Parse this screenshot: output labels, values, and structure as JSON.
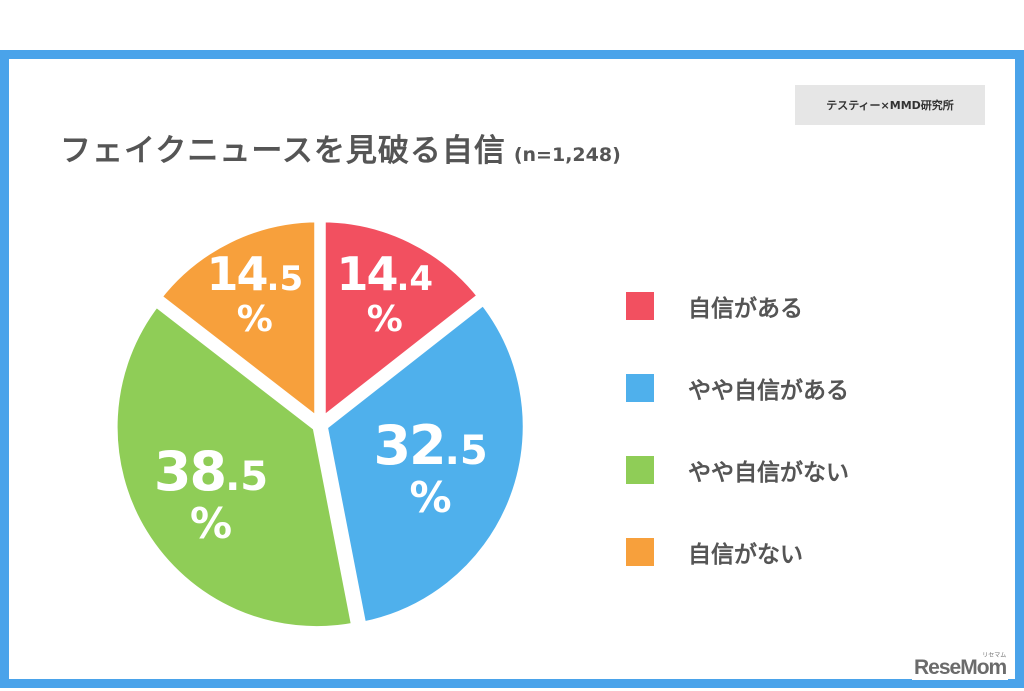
{
  "title": "フェイクニュースを見破る自信",
  "sample": "(n=1,248)",
  "source": "テスティー×MMD研究所",
  "logo": "ReseMom",
  "logo_kana": "リセマム",
  "colors": {
    "frame": "#4aa3ea",
    "red": "#f25060",
    "blue": "#4fb0ec",
    "green": "#8fcd57",
    "orange": "#f7a03c",
    "label": "#555555"
  },
  "chart_data": {
    "type": "pie",
    "title": "フェイクニュースを見破る自信",
    "subtitle": "(n=1,248)",
    "unit": "%",
    "start": "12 o'clock, clockwise",
    "legend": "right",
    "slices": [
      {
        "label": "自信がある",
        "value": 14.4,
        "int": "14",
        "dec": ".4",
        "color": "#f25060"
      },
      {
        "label": "やや自信がある",
        "value": 32.5,
        "int": "32",
        "dec": ".5",
        "color": "#4fb0ec"
      },
      {
        "label": "やや自信がない",
        "value": 38.5,
        "int": "38",
        "dec": ".5",
        "color": "#8fcd57"
      },
      {
        "label": "自信がない",
        "value": 14.5,
        "int": "14",
        "dec": ".5",
        "color": "#f7a03c"
      }
    ]
  }
}
